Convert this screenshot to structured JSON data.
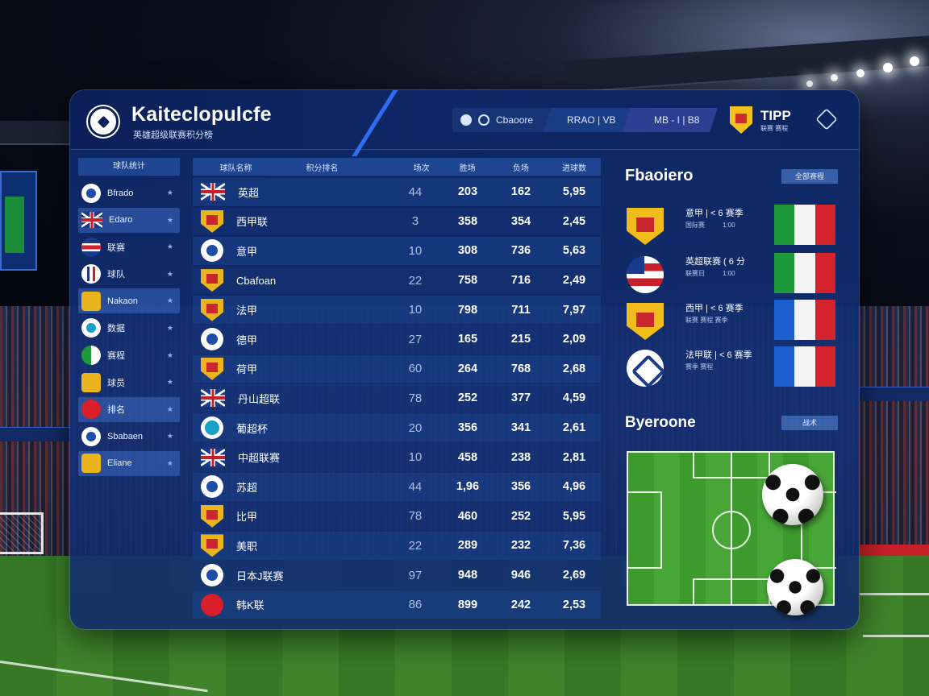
{
  "app": {
    "title": "Kaiteclopulcfe",
    "subtitle": "英雄超级联赛积分榜"
  },
  "header": {
    "pill_a": "Cbaoore",
    "pill_b": "RRAO  |  VB",
    "pill_c": "MB - I  |  B8",
    "brand": "TIPP",
    "brand_sub": "联赛 赛程"
  },
  "sidebar": {
    "heading": "球队统计",
    "items": [
      {
        "label": "Bfrado",
        "flag": "round"
      },
      {
        "label": "Edaro",
        "flag": "uk"
      },
      {
        "label": "联赛",
        "flag": "stripe"
      },
      {
        "label": "球队",
        "flag": "v"
      },
      {
        "label": "Nakaon",
        "flag": "shield"
      },
      {
        "label": "数据",
        "flag": "teal"
      },
      {
        "label": "赛程",
        "flag": "green"
      },
      {
        "label": "球员",
        "flag": "shield"
      },
      {
        "label": "排名",
        "flag": "red"
      },
      {
        "label": "Sbabaen",
        "flag": "round"
      },
      {
        "label": "Eliane",
        "flag": "shield"
      }
    ]
  },
  "table": {
    "headers": [
      "球队名称",
      "积分排名",
      "场次",
      "胜场",
      "负场",
      "进球数"
    ],
    "rows": [
      {
        "crest": "uk",
        "name": "英超",
        "n": "44",
        "a": "203",
        "b": "162",
        "c": "5,95"
      },
      {
        "crest": "shield",
        "name": "西甲联",
        "n": "3",
        "a": "358",
        "b": "354",
        "c": "2,45"
      },
      {
        "crest": "round",
        "name": "意甲",
        "n": "10",
        "a": "308",
        "b": "736",
        "c": "5,63"
      },
      {
        "crest": "shield",
        "name": "Cbafoan",
        "n": "22",
        "a": "758",
        "b": "716",
        "c": "2,49"
      },
      {
        "crest": "shield",
        "name": "法甲",
        "n": "10",
        "a": "798",
        "b": "711",
        "c": "7,97"
      },
      {
        "crest": "round",
        "name": "德甲",
        "n": "27",
        "a": "165",
        "b": "215",
        "c": "2,09"
      },
      {
        "crest": "shield",
        "name": "荷甲",
        "n": "60",
        "a": "264",
        "b": "768",
        "c": "2,68"
      },
      {
        "crest": "uk",
        "name": "丹山超联",
        "n": "78",
        "a": "252",
        "b": "377",
        "c": "4,59"
      },
      {
        "crest": "teal",
        "name": "葡超杯",
        "n": "20",
        "a": "356",
        "b": "341",
        "c": "2,61"
      },
      {
        "crest": "uk",
        "name": "中超联赛",
        "n": "10",
        "a": "458",
        "b": "238",
        "c": "2,81"
      },
      {
        "crest": "round",
        "name": "苏超",
        "n": "44",
        "a": "1,96",
        "b": "356",
        "c": "4,96"
      },
      {
        "crest": "shield",
        "name": "比甲",
        "n": "78",
        "a": "460",
        "b": "252",
        "c": "5,95"
      },
      {
        "crest": "shield",
        "name": "美职",
        "n": "22",
        "a": "289",
        "b": "232",
        "c": "7,36"
      },
      {
        "crest": "round",
        "name": "日本J联赛",
        "n": "97",
        "a": "948",
        "b": "946",
        "c": "2,69"
      },
      {
        "crest": "red",
        "name": "韩K联",
        "n": "86",
        "a": "899",
        "b": "242",
        "c": "2,53"
      }
    ]
  },
  "right": {
    "title": "Fbaoiero",
    "button": "全部赛程",
    "matches": [
      {
        "crest": "s",
        "line1": "意甲 | < 6 赛季",
        "line2a": "国际赛",
        "line2b": "1:00",
        "flag": [
          "#1f9a3a",
          "#f4f4f4",
          "#d5232c"
        ]
      },
      {
        "crest": "c",
        "line1": "英超联赛 ( 6 分",
        "line2a": "联赛日",
        "line2b": "1:00",
        "flag": [
          "#1f9a3a",
          "#f4f4f4",
          "#d5232c"
        ]
      },
      {
        "crest": "s",
        "line1": "西甲 | < 6 赛季",
        "line2a": "联赛 赛程 赛季",
        "line2b": "",
        "flag": [
          "#1e5fd0",
          "#f4f4f4",
          "#d5232c"
        ]
      },
      {
        "crest": "w",
        "line1": "法甲联 | < 6 赛季",
        "line2a": "赛季 赛程",
        "line2b": "",
        "flag": [
          "#1e5fd0",
          "#f4f4f4",
          "#d5232c"
        ]
      }
    ],
    "field_title": "Byeroone",
    "field_button": "战术"
  },
  "colors": {
    "panel": "#12306e",
    "header": "#0b2058",
    "accent": "#2f6cf0",
    "row": "#1c428c"
  }
}
